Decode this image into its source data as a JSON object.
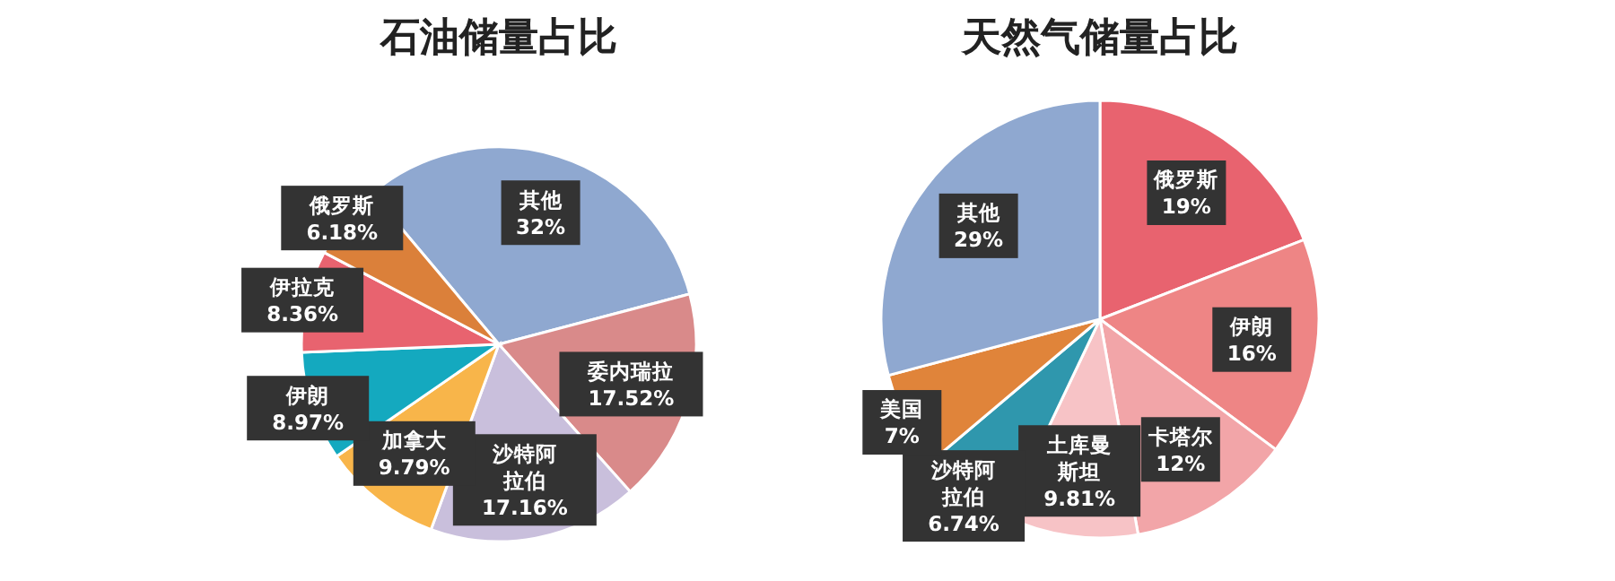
{
  "chart_data": [
    {
      "type": "pie",
      "title": "石油储量占比",
      "value_labels": [
        "32%",
        "17.52%",
        "17.16%",
        "9.79%",
        "8.97%",
        "8.36%",
        "6.18%"
      ],
      "categories": [
        "其他",
        "委内瑞拉",
        "沙特阿拉伯",
        "加拿大",
        "伊朗",
        "伊拉克",
        "俄罗斯"
      ],
      "values": [
        32,
        17.52,
        17.16,
        9.79,
        8.97,
        8.36,
        6.18
      ],
      "colors": [
        "#8fa8d0",
        "#d98a8a",
        "#c9bfdc",
        "#f8b54a",
        "#14a9bf",
        "#e8636f",
        "#db803a"
      ]
    },
    {
      "type": "pie",
      "title": "天然气储量占比",
      "value_labels": [
        "19%",
        "16%",
        "12%",
        "9.81%",
        "6.74%",
        "7%",
        "29%"
      ],
      "categories": [
        "俄罗斯",
        "伊朗",
        "卡塔尔",
        "土库曼斯坦",
        "沙特阿拉伯",
        "美国",
        "其他"
      ],
      "values": [
        19,
        16,
        12,
        9.81,
        6.74,
        7,
        29
      ],
      "colors": [
        "#e8636f",
        "#ee8585",
        "#f2a5a8",
        "#f7c3c6",
        "#2f97ad",
        "#e0843a",
        "#8fa8d0"
      ]
    }
  ]
}
